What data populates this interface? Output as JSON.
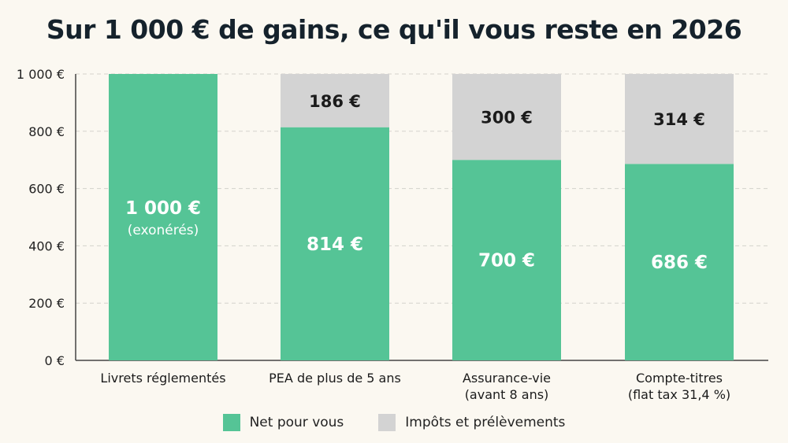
{
  "chart_data": {
    "type": "bar",
    "stacked": true,
    "title": "Sur 1 000 € de gains, ce qu'il vous reste en 2026",
    "categories": [
      [
        "Livrets réglementés"
      ],
      [
        "PEA de plus de 5 ans"
      ],
      [
        "Assurance-vie",
        "(avant 8 ans)"
      ],
      [
        "Compte-titres",
        "(flat tax 31,4 %)"
      ]
    ],
    "series": [
      {
        "name": "Net pour vous",
        "color": "#55c496",
        "values": [
          1000,
          814,
          700,
          686
        ],
        "labels": [
          [
            "1 000 €",
            "(exonérés)"
          ],
          [
            "814 €"
          ],
          [
            "700 €"
          ],
          [
            "686 €"
          ]
        ]
      },
      {
        "name": "Impôts et prélèvements",
        "color": "#d3d3d3",
        "values": [
          0,
          186,
          300,
          314
        ],
        "labels": [
          [],
          [
            "186 €"
          ],
          [
            "300 €"
          ],
          [
            "314 €"
          ]
        ]
      }
    ],
    "yaxis": {
      "ticks": [
        0,
        200,
        400,
        600,
        800,
        1000
      ],
      "tick_labels": [
        "0 €",
        "200 €",
        "400 €",
        "600 €",
        "800 €",
        "1 000 €"
      ],
      "ylim": [
        0,
        1000
      ]
    },
    "grid": "horizontal dashed",
    "legend_position": "bottom"
  }
}
